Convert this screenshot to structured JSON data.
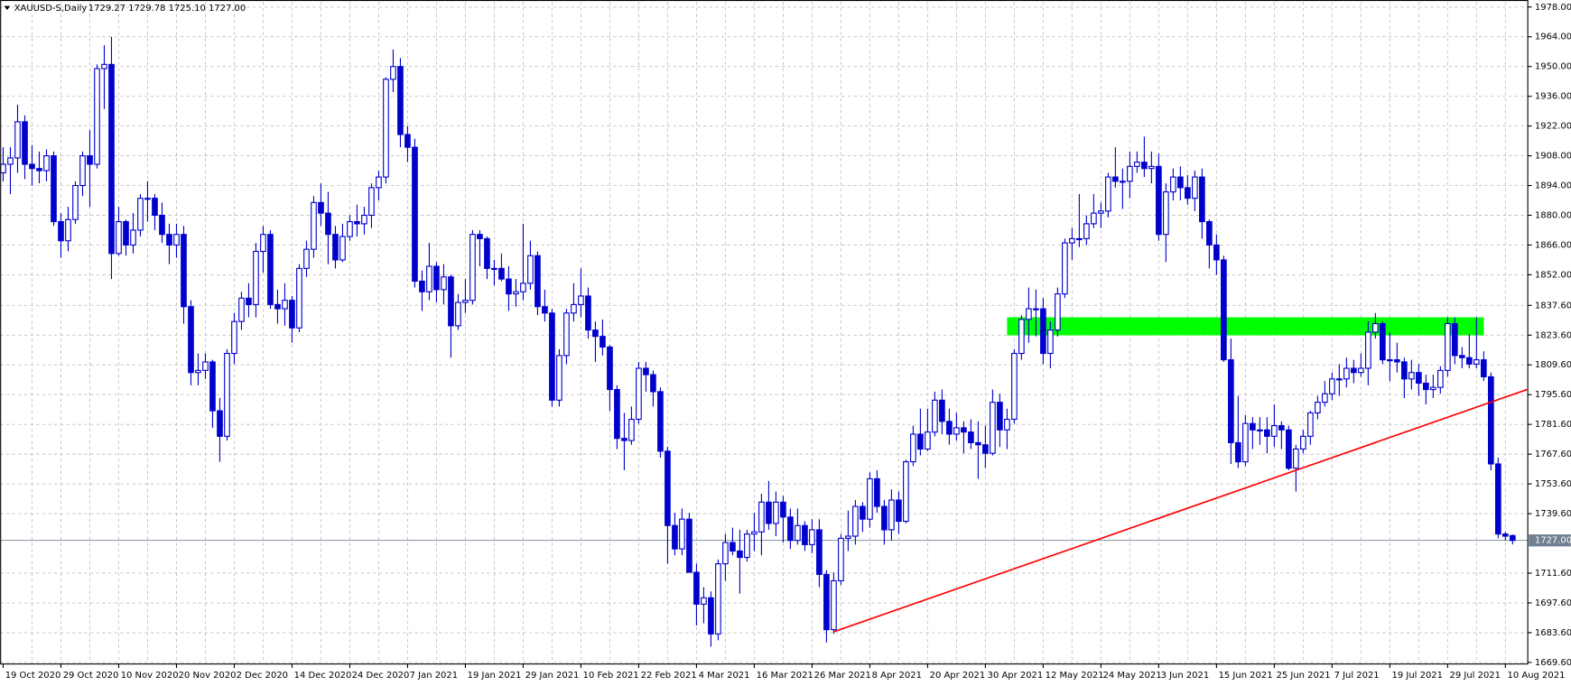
{
  "chart_data": {
    "type": "candlestick",
    "title": "XAUUSD-S,Daily",
    "subtitle": "1729.27 1729.78 1725.10 1727.00",
    "color": "#0000cd",
    "grid": true,
    "categories": [
      "19 Oct 2020",
      null,
      null,
      null,
      null,
      null,
      null,
      null,
      "29 Oct 2020",
      null,
      null,
      null,
      null,
      null,
      null,
      null,
      "10 Nov 2020",
      null,
      null,
      null,
      null,
      null,
      null,
      null,
      "20 Nov 2020",
      null,
      null,
      null,
      null,
      null,
      null,
      null,
      "2 Dec 2020",
      null,
      null,
      null,
      null,
      null,
      null,
      null,
      "14 Dec 2020",
      null,
      null,
      null,
      null,
      null,
      null,
      null,
      "24 Dec 2020",
      null,
      null,
      null,
      null,
      null,
      null,
      null,
      "7 Jan 2021",
      null,
      null,
      null,
      null,
      null,
      null,
      null,
      "19 Jan 2021",
      null,
      null,
      null,
      null,
      null,
      null,
      null,
      "29 Jan 2021",
      null,
      null,
      null,
      null,
      null,
      null,
      null,
      "10 Feb 2021",
      null,
      null,
      null,
      null,
      null,
      null,
      null,
      "22 Feb 2021",
      null,
      null,
      null,
      null,
      null,
      null,
      null,
      "4 Mar 2021",
      null,
      null,
      null,
      null,
      null,
      null,
      null,
      "16 Mar 2021",
      null,
      null,
      null,
      null,
      null,
      null,
      null,
      "26 Mar 2021",
      null,
      null,
      null,
      null,
      null,
      null,
      null,
      "8 Apr 2021",
      null,
      null,
      null,
      null,
      null,
      null,
      null,
      "20 Apr 2021",
      null,
      null,
      null,
      null,
      null,
      null,
      null,
      "30 Apr 2021",
      null,
      null,
      null,
      null,
      null,
      null,
      null,
      "12 May 2021",
      null,
      null,
      null,
      null,
      null,
      null,
      null,
      "24 May 2021",
      null,
      null,
      null,
      null,
      null,
      null,
      null,
      "3 Jun 2021",
      null,
      null,
      null,
      null,
      null,
      null,
      null,
      "15 Jun 2021",
      null,
      null,
      null,
      null,
      null,
      null,
      null,
      "25 Jun 2021",
      null,
      null,
      null,
      null,
      null,
      null,
      null,
      "7 Jul 2021",
      null,
      null,
      null,
      null,
      null,
      null,
      null,
      "19 Jul 2021",
      null,
      null,
      null,
      null,
      null,
      null,
      null,
      "29 Jul 2021",
      null,
      null,
      null,
      null,
      null,
      null,
      null,
      "10 Aug 2021",
      null
    ],
    "open": [
      1900,
      1904,
      1907,
      1924,
      1904,
      1902,
      1901,
      1908,
      1877,
      1868,
      1878,
      1894,
      1908,
      1904,
      1949,
      1951,
      1862,
      1877,
      1866,
      1873,
      1888,
      1888,
      1880,
      1871,
      1866,
      1871,
      1837,
      1806,
      1807,
      1811,
      1788,
      1776,
      1815,
      1830,
      1841,
      1838,
      1863,
      1871,
      1838,
      1836,
      1840,
      1827,
      1855,
      1864,
      1886,
      1881,
      1871,
      1859,
      1870,
      1877,
      1876,
      1880,
      1893,
      1898,
      1944,
      1950,
      1918,
      1912,
      1849,
      1844,
      1856,
      1845,
      1851,
      1828,
      1839,
      1840,
      1871,
      1869,
      1855,
      1855,
      1850,
      1843,
      1844,
      1848,
      1861,
      1837,
      1834,
      1793,
      1814,
      1834,
      1838,
      1842,
      1826,
      1823,
      1818,
      1798,
      1775,
      1774,
      1784,
      1808,
      1805,
      1797,
      1769,
      1734,
      1723,
      1737,
      1712,
      1697,
      1700,
      1683,
      1716,
      1726,
      1722,
      1719,
      1730,
      1731,
      1745,
      1735,
      1745,
      1738,
      1727,
      1734,
      1725,
      1732,
      1711,
      1685,
      1708,
      1728,
      1729,
      1743,
      1737,
      1756,
      1743,
      1732,
      1746,
      1736,
      1764,
      1777,
      1770,
      1778,
      1793,
      1783,
      1777,
      1780,
      1778,
      1773,
      1772,
      1768,
      1792,
      1779,
      1784,
      1815,
      1831,
      1836,
      1836,
      1815,
      1826,
      1843,
      1867,
      1869,
      1869,
      1876,
      1881,
      1882,
      1898,
      1896,
      1896,
      1903,
      1905,
      1902,
      1903,
      1871,
      1891,
      1898,
      1893,
      1888,
      1898,
      1877,
      1866,
      1859,
      1812,
      1773,
      1764,
      1782,
      1779,
      1779,
      1776,
      1781,
      1779,
      1761,
      1770,
      1776,
      1787,
      1792,
      1796,
      1803,
      1803,
      1808,
      1806,
      1808,
      1825,
      1829,
      1812,
      1812,
      1811,
      1803,
      1806,
      1801,
      1798,
      1799,
      1807,
      1829,
      1814,
      1813,
      1810,
      1812,
      1804,
      1763,
      1730,
      1729.27
    ],
    "high": [
      1912,
      1912,
      1932,
      1927,
      1913,
      1910,
      1911,
      1910,
      1881,
      1884,
      1896,
      1910,
      1920,
      1951,
      1960,
      1964,
      1884,
      1878,
      1881,
      1890,
      1896,
      1890,
      1886,
      1876,
      1876,
      1875,
      1840,
      1815,
      1815,
      1812,
      1794,
      1817,
      1834,
      1844,
      1848,
      1867,
      1875,
      1873,
      1845,
      1848,
      1842,
      1857,
      1868,
      1889,
      1895,
      1891,
      1875,
      1876,
      1880,
      1885,
      1884,
      1895,
      1901,
      1945,
      1958,
      1954,
      1922,
      1916,
      1854,
      1867,
      1858,
      1857,
      1852,
      1843,
      1850,
      1873,
      1873,
      1870,
      1859,
      1862,
      1856,
      1850,
      1876,
      1868,
      1863,
      1845,
      1836,
      1817,
      1836,
      1848,
      1855,
      1846,
      1830,
      1831,
      1819,
      1800,
      1787,
      1790,
      1811,
      1811,
      1807,
      1799,
      1771,
      1740,
      1742,
      1740,
      1716,
      1705,
      1703,
      1718,
      1730,
      1733,
      1732,
      1732,
      1740,
      1749,
      1755,
      1750,
      1748,
      1742,
      1742,
      1736,
      1737,
      1737,
      1713,
      1712,
      1730,
      1741,
      1746,
      1745,
      1759,
      1760,
      1746,
      1751,
      1750,
      1765,
      1781,
      1789,
      1789,
      1797,
      1798,
      1789,
      1787,
      1783,
      1784,
      1783,
      1781,
      1798,
      1796,
      1789,
      1817,
      1833,
      1846,
      1845,
      1841,
      1830,
      1846,
      1869,
      1874,
      1890,
      1880,
      1890,
      1886,
      1900,
      1912,
      1902,
      1910,
      1910,
      1917,
      1910,
      1909,
      1895,
      1902,
      1903,
      1899,
      1901,
      1902,
      1878,
      1871,
      1861,
      1822,
      1795,
      1786,
      1785,
      1785,
      1785,
      1791,
      1783,
      1781,
      1772,
      1779,
      1788,
      1795,
      1802,
      1806,
      1810,
      1813,
      1812,
      1815,
      1830,
      1834,
      1830,
      1825,
      1820,
      1813,
      1812,
      1810,
      1805,
      1805,
      1809,
      1832,
      1832,
      1818,
      1824,
      1832,
      1816,
      1806,
      1766,
      1731,
      1729.78
    ],
    "low": [
      1896,
      1890,
      1900,
      1897,
      1894,
      1895,
      1896,
      1875,
      1860,
      1863,
      1876,
      1889,
      1884,
      1902,
      1930,
      1850,
      1861,
      1861,
      1862,
      1870,
      1877,
      1873,
      1867,
      1857,
      1860,
      1829,
      1800,
      1800,
      1803,
      1780,
      1764,
      1774,
      1810,
      1826,
      1832,
      1832,
      1853,
      1836,
      1829,
      1828,
      1820,
      1825,
      1851,
      1860,
      1875,
      1857,
      1855,
      1858,
      1868,
      1870,
      1871,
      1874,
      1887,
      1895,
      1938,
      1912,
      1905,
      1846,
      1835,
      1840,
      1839,
      1838,
      1813,
      1826,
      1834,
      1838,
      1856,
      1850,
      1847,
      1849,
      1835,
      1837,
      1840,
      1845,
      1833,
      1830,
      1790,
      1790,
      1810,
      1830,
      1832,
      1822,
      1811,
      1814,
      1788,
      1770,
      1760,
      1772,
      1782,
      1797,
      1790,
      1766,
      1716,
      1720,
      1720,
      1712,
      1687,
      1688,
      1677,
      1680,
      1708,
      1720,
      1702,
      1717,
      1722,
      1720,
      1732,
      1729,
      1726,
      1723,
      1725,
      1722,
      1721,
      1705,
      1679,
      1683,
      1706,
      1722,
      1725,
      1731,
      1733,
      1740,
      1725,
      1727,
      1730,
      1735,
      1762,
      1767,
      1769,
      1776,
      1777,
      1772,
      1774,
      1768,
      1770,
      1756,
      1761,
      1767,
      1771,
      1770,
      1782,
      1812,
      1820,
      1823,
      1810,
      1808,
      1823,
      1841,
      1859,
      1865,
      1866,
      1874,
      1874,
      1879,
      1893,
      1883,
      1888,
      1900,
      1898,
      1895,
      1868,
      1858,
      1887,
      1887,
      1885,
      1882,
      1869,
      1855,
      1852,
      1811,
      1763,
      1761,
      1762,
      1770,
      1772,
      1768,
      1771,
      1770,
      1760,
      1750,
      1768,
      1772,
      1784,
      1790,
      1793,
      1795,
      1799,
      1801,
      1804,
      1800,
      1822,
      1810,
      1802,
      1806,
      1794,
      1798,
      1795,
      1791,
      1794,
      1796,
      1804,
      1810,
      1808,
      1808,
      1808,
      1802,
      1760,
      1728,
      1727,
      1725.1
    ],
    "close": [
      1904,
      1907,
      1924,
      1904,
      1902,
      1901,
      1908,
      1877,
      1868,
      1878,
      1894,
      1908,
      1904,
      1949,
      1951,
      1862,
      1877,
      1866,
      1873,
      1888,
      1888,
      1880,
      1871,
      1866,
      1871,
      1837,
      1806,
      1807,
      1811,
      1788,
      1776,
      1815,
      1830,
      1841,
      1838,
      1863,
      1871,
      1838,
      1836,
      1840,
      1827,
      1855,
      1864,
      1886,
      1881,
      1871,
      1859,
      1870,
      1877,
      1876,
      1880,
      1893,
      1898,
      1944,
      1950,
      1918,
      1912,
      1849,
      1844,
      1856,
      1845,
      1851,
      1828,
      1839,
      1840,
      1871,
      1869,
      1855,
      1855,
      1850,
      1843,
      1844,
      1848,
      1861,
      1837,
      1834,
      1793,
      1814,
      1834,
      1838,
      1842,
      1826,
      1823,
      1818,
      1798,
      1775,
      1774,
      1784,
      1808,
      1805,
      1797,
      1769,
      1734,
      1723,
      1737,
      1712,
      1697,
      1700,
      1683,
      1716,
      1726,
      1722,
      1719,
      1730,
      1731,
      1745,
      1735,
      1745,
      1738,
      1727,
      1734,
      1725,
      1732,
      1711,
      1685,
      1708,
      1728,
      1729,
      1743,
      1737,
      1756,
      1743,
      1732,
      1746,
      1736,
      1764,
      1777,
      1770,
      1778,
      1793,
      1783,
      1777,
      1780,
      1778,
      1773,
      1772,
      1768,
      1792,
      1779,
      1784,
      1815,
      1831,
      1836,
      1836,
      1815,
      1826,
      1843,
      1867,
      1869,
      1869,
      1876,
      1881,
      1882,
      1898,
      1896,
      1896,
      1903,
      1905,
      1902,
      1903,
      1871,
      1891,
      1898,
      1893,
      1888,
      1898,
      1877,
      1866,
      1859,
      1812,
      1773,
      1764,
      1782,
      1779,
      1779,
      1776,
      1781,
      1779,
      1761,
      1770,
      1776,
      1787,
      1792,
      1796,
      1803,
      1803,
      1808,
      1806,
      1808,
      1825,
      1829,
      1812,
      1812,
      1811,
      1803,
      1806,
      1801,
      1798,
      1799,
      1807,
      1829,
      1814,
      1813,
      1810,
      1812,
      1804,
      1763,
      1730,
      1729,
      1727
    ],
    "ylim": [
      1668.86,
      1980.36
    ],
    "yticks": [
      {
        "value": 1978,
        "label": "1978.00"
      },
      {
        "value": 1964,
        "label": "1964.00"
      },
      {
        "value": 1950,
        "label": "1950.00"
      },
      {
        "value": 1936,
        "label": "1936.00"
      },
      {
        "value": 1922,
        "label": "1922.00"
      },
      {
        "value": 1908,
        "label": "1908.00"
      },
      {
        "value": 1894,
        "label": "1894.00"
      },
      {
        "value": 1880,
        "label": "1880.00"
      },
      {
        "value": 1866,
        "label": "1866.00"
      },
      {
        "value": 1852,
        "label": "1852.00"
      },
      {
        "value": 1837.6,
        "label": "1837.60"
      },
      {
        "value": 1823.6,
        "label": "1823.60"
      },
      {
        "value": 1809.6,
        "label": "1809.60"
      },
      {
        "value": 1795.6,
        "label": "1795.60"
      },
      {
        "value": 1781.6,
        "label": "1781.60"
      },
      {
        "value": 1767.6,
        "label": "1767.60"
      },
      {
        "value": 1753.6,
        "label": "1753.60"
      },
      {
        "value": 1739.6,
        "label": "1739.60"
      },
      {
        "value": 1711.6,
        "label": "1711.60"
      },
      {
        "value": 1697.6,
        "label": "1697.60"
      },
      {
        "value": 1683.6,
        "label": "1683.60"
      },
      {
        "value": 1669.6,
        "label": "1669.60"
      }
    ],
    "current_price": {
      "value": 1727,
      "label": "1727.00"
    },
    "zone": {
      "low": 1823.5,
      "high": 1832,
      "start": 139,
      "end": 205,
      "color": "#00ff00"
    },
    "trendline": {
      "color": "#ff0000",
      "x": [
        115,
        211
      ],
      "y": [
        1684,
        1798
      ]
    }
  }
}
